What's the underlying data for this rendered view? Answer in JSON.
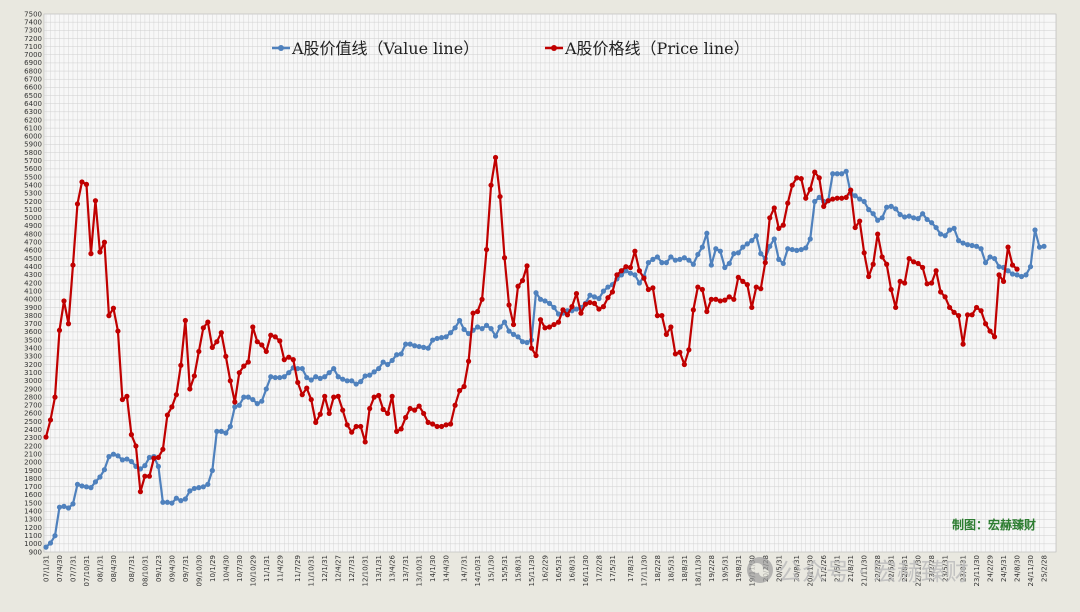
{
  "chart_data": {
    "type": "line",
    "title": "",
    "xlabel": "",
    "ylabel": "",
    "ylim": [
      900,
      7500
    ],
    "ytick_step": 100,
    "grid": true,
    "legend_placement": "top-center",
    "x_tick_labels": [
      "07/1/31",
      "07/4/30",
      "07/7/31",
      "07/10/31",
      "08/1/31",
      "08/4/30",
      "08/7/31",
      "08/10/31",
      "09/1/23",
      "09/4/30",
      "09/7/31",
      "09/10/30",
      "10/1/29",
      "10/4/30",
      "10/7/30",
      "10/10/29",
      "11/1/31",
      "11/4/29",
      "11/7/29",
      "11/10/31",
      "12/1/31",
      "12/4/27",
      "12/7/31",
      "12/10/31",
      "13/1/31",
      "13/4/26",
      "13/7/31",
      "13/10/31",
      "14/1/30",
      "14/4/30",
      "14/7/31",
      "14/10/31",
      "15/1/30",
      "15/5/31",
      "15/8/31",
      "15/11/30",
      "16/2/29",
      "16/5/31",
      "16/8/31",
      "16/11/30",
      "17/2/28",
      "17/5/31",
      "17/8/31",
      "17/11/30",
      "18/2/28",
      "18/5/31",
      "18/8/31",
      "18/11/30",
      "19/2/28",
      "19/5/31",
      "19/8/31",
      "19/11/30",
      "20/2/28",
      "20/5/31",
      "20/8/31",
      "20/11/30",
      "21/2/26",
      "21/5/31",
      "21/8/31",
      "21/11/30",
      "22/2/28",
      "22/5/31",
      "22/8/31",
      "22/11/30",
      "23/2/28",
      "23/5/31",
      "23/8/31",
      "23/11/30",
      "24/2/29",
      "24/5/31",
      "24/8/30",
      "24/11/30",
      "25/2/28"
    ],
    "series": [
      {
        "name": "A股价值线（Value line）",
        "color": "#4f81bd",
        "values": [
          960,
          1010,
          1100,
          1450,
          1460,
          1440,
          1490,
          1730,
          1710,
          1700,
          1690,
          1760,
          1820,
          1910,
          2070,
          2100,
          2080,
          2030,
          2040,
          2010,
          1950,
          1920,
          1960,
          2060,
          2070,
          1950,
          1510,
          1510,
          1500,
          1560,
          1530,
          1550,
          1650,
          1680,
          1690,
          1700,
          1730,
          1900,
          2380,
          2380,
          2360,
          2440,
          2680,
          2700,
          2800,
          2800,
          2770,
          2720,
          2750,
          2900,
          3050,
          3040,
          3040,
          3050,
          3100,
          3160,
          3150,
          3150,
          3040,
          3010,
          3050,
          3030,
          3050,
          3100,
          3150,
          3050,
          3020,
          3000,
          3000,
          2960,
          2990,
          3060,
          3070,
          3110,
          3150,
          3230,
          3200,
          3250,
          3320,
          3330,
          3450,
          3450,
          3430,
          3420,
          3410,
          3400,
          3500,
          3520,
          3530,
          3540,
          3590,
          3650,
          3740,
          3630,
          3580,
          3620,
          3660,
          3640,
          3680,
          3640,
          3550,
          3660,
          3720,
          3610,
          3570,
          3540,
          3480,
          3470,
          3500,
          4080,
          4000,
          3980,
          3950,
          3900,
          3820,
          3830,
          3860,
          3860,
          3880,
          3900,
          3950,
          4050,
          4030,
          4010,
          4100,
          4150,
          4180,
          4250,
          4300,
          4350,
          4320,
          4300,
          4200,
          4280,
          4450,
          4490,
          4520,
          4450,
          4450,
          4520,
          4480,
          4490,
          4510,
          4480,
          4430,
          4550,
          4640,
          4810,
          4420,
          4620,
          4590,
          4390,
          4440,
          4560,
          4570,
          4640,
          4680,
          4720,
          4780,
          4560,
          4500,
          4650,
          4740,
          4490,
          4440,
          4620,
          4610,
          4600,
          4610,
          4630,
          4740,
          5200,
          5250,
          5200,
          5210,
          5540,
          5540,
          5540,
          5570,
          5300,
          5270,
          5230,
          5200,
          5100,
          5050,
          4970,
          5000,
          5130,
          5140,
          5110,
          5040,
          5010,
          5020,
          5000,
          4990,
          5050,
          4980,
          4940,
          4880,
          4800,
          4780,
          4850,
          4870,
          4720,
          4690,
          4670,
          4660,
          4650,
          4620,
          4450,
          4520,
          4500,
          4400,
          4390,
          4350,
          4310,
          4300,
          4280,
          4300,
          4400,
          4850,
          4640,
          4650
        ]
      },
      {
        "name": "A股价格线（Price line）",
        "color": "#c00000",
        "values": [
          2310,
          2520,
          2800,
          3620,
          3980,
          3700,
          4420,
          5170,
          5440,
          5410,
          4560,
          5210,
          4580,
          4700,
          3800,
          3890,
          3610,
          2770,
          2810,
          2340,
          2200,
          1640,
          1830,
          1830,
          2050,
          2060,
          2160,
          2580,
          2680,
          2830,
          3190,
          3740,
          2900,
          3060,
          3360,
          3650,
          3720,
          3410,
          3480,
          3590,
          3300,
          3000,
          2740,
          3100,
          3180,
          3230,
          3660,
          3480,
          3440,
          3360,
          3560,
          3540,
          3490,
          3260,
          3290,
          3260,
          2980,
          2830,
          2910,
          2770,
          2490,
          2590,
          2810,
          2600,
          2800,
          2810,
          2640,
          2460,
          2370,
          2440,
          2440,
          2250,
          2660,
          2800,
          2820,
          2650,
          2600,
          2810,
          2380,
          2410,
          2550,
          2660,
          2640,
          2690,
          2600,
          2490,
          2470,
          2440,
          2440,
          2460,
          2470,
          2700,
          2880,
          2930,
          3240,
          3830,
          3850,
          4000,
          4610,
          5400,
          5740,
          5260,
          4510,
          3930,
          3690,
          4160,
          4230,
          4410,
          3400,
          3310,
          3750,
          3650,
          3660,
          3690,
          3720,
          3870,
          3810,
          3910,
          4070,
          3830,
          3940,
          3960,
          3950,
          3880,
          3910,
          4020,
          4090,
          4300,
          4350,
          4400,
          4390,
          4590,
          4350,
          4260,
          4120,
          4140,
          3800,
          3800,
          3570,
          3660,
          3330,
          3350,
          3200,
          3380,
          3870,
          4150,
          4120,
          3850,
          4000,
          4000,
          3980,
          3990,
          4030,
          4000,
          4270,
          4220,
          4180,
          3900,
          4150,
          4130,
          4450,
          5000,
          5120,
          4870,
          4910,
          5180,
          5400,
          5490,
          5480,
          5240,
          5350,
          5560,
          5490,
          5140,
          5210,
          5230,
          5240,
          5240,
          5250,
          5340,
          4880,
          4960,
          4570,
          4280,
          4430,
          4800,
          4520,
          4430,
          4120,
          3900,
          4220,
          4200,
          4500,
          4460,
          4440,
          4390,
          4190,
          4200,
          4350,
          4090,
          4030,
          3900,
          3840,
          3800,
          3450,
          3810,
          3810,
          3900,
          3860,
          3700,
          3610,
          3540,
          4300,
          4220,
          4640,
          4420,
          4370
        ]
      }
    ]
  },
  "credit_text": "制图：宏赫臻财",
  "watermark_text": "公众号 · 宏赫臻财",
  "watermark_icon": "wechat-bubble-icon"
}
